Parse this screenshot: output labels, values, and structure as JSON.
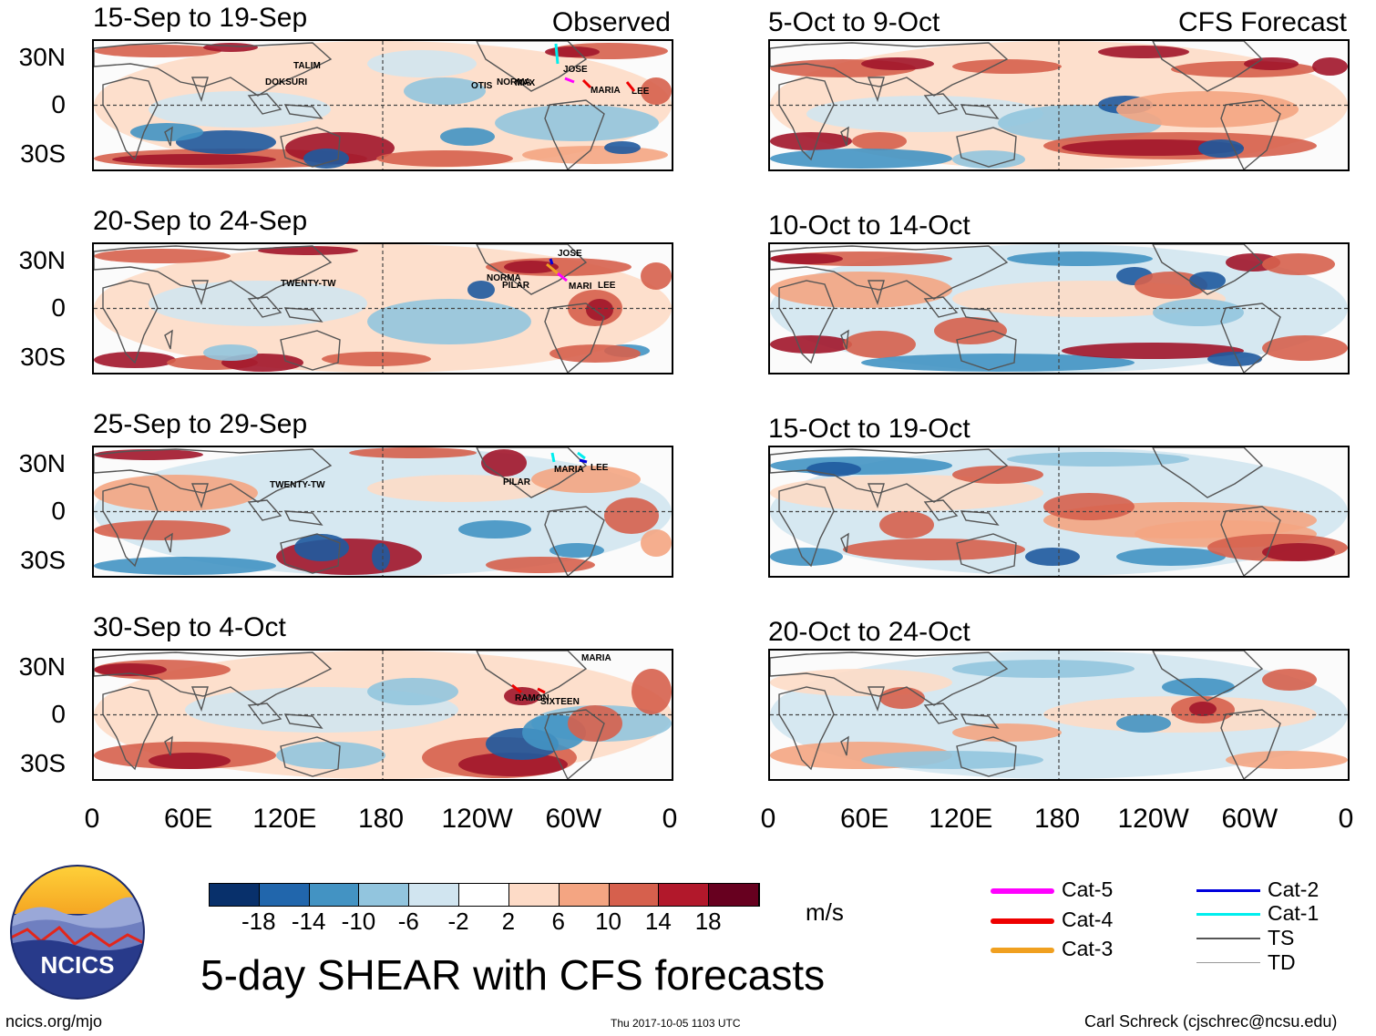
{
  "panels": [
    {
      "id": "obs1",
      "title": "15-Sep to 19-Sep",
      "tag": "Observed",
      "storms": [
        "TALIM",
        "DOKSURI",
        "JOSE",
        "OTIS",
        "NORMA",
        "MAX",
        "MARIA",
        "LEE"
      ]
    },
    {
      "id": "obs2",
      "title": "20-Sep to 24-Sep",
      "tag": "",
      "storms": [
        "TWENTY-TW",
        "JOSE",
        "NORMA",
        "PILAR",
        "MARI",
        "LEE"
      ]
    },
    {
      "id": "obs3",
      "title": "25-Sep to 29-Sep",
      "tag": "",
      "storms": [
        "TWENTY-TW",
        "MARIA",
        "LEE",
        "PILAR"
      ]
    },
    {
      "id": "obs4",
      "title": "30-Sep to 4-Oct",
      "tag": "",
      "storms": [
        "MARIA",
        "RAMON",
        "SIXTEEN"
      ]
    },
    {
      "id": "fc1",
      "title": "5-Oct to 9-Oct",
      "tag": "CFS Forecast",
      "storms": []
    },
    {
      "id": "fc2",
      "title": "10-Oct to 14-Oct",
      "tag": "",
      "storms": []
    },
    {
      "id": "fc3",
      "title": "15-Oct to 19-Oct",
      "tag": "",
      "storms": []
    },
    {
      "id": "fc4",
      "title": "20-Oct to 24-Oct",
      "tag": "",
      "storms": []
    }
  ],
  "lat_labels": [
    "30N",
    "0",
    "30S"
  ],
  "lon_labels": [
    "0",
    "60E",
    "120E",
    "180",
    "120W",
    "60W",
    "0"
  ],
  "colorbar": {
    "ticks": [
      "-18",
      "-14",
      "-10",
      "-6",
      "-2",
      "2",
      "6",
      "10",
      "14",
      "18"
    ],
    "colors": [
      "#08306b",
      "#2166ac",
      "#4393c3",
      "#92c5de",
      "#d1e5f0",
      "#ffffff",
      "#fddbc7",
      "#f4a582",
      "#d6604d",
      "#b2182b",
      "#67001f"
    ],
    "units": "m/s"
  },
  "legend": [
    {
      "label": "Cat-5",
      "color": "#ff00ff"
    },
    {
      "label": "Cat-4",
      "color": "#ee0000"
    },
    {
      "label": "Cat-3",
      "color": "#f0a020"
    },
    {
      "label": "Cat-2",
      "color": "#0000dd"
    },
    {
      "label": "Cat-1",
      "color": "#00eeee"
    },
    {
      "label": "TS",
      "color": "#555555"
    },
    {
      "label": "TD",
      "color": "#999999"
    }
  ],
  "logo": {
    "text": "NCICS"
  },
  "main_title": "5-day SHEAR with CFS forecasts",
  "footer": {
    "url": "ncics.org/mjo",
    "timestamp": "Thu 2017-10-05 1103 UTC",
    "credit": "Carl Schreck (cjschrec@ncsu.edu)"
  }
}
